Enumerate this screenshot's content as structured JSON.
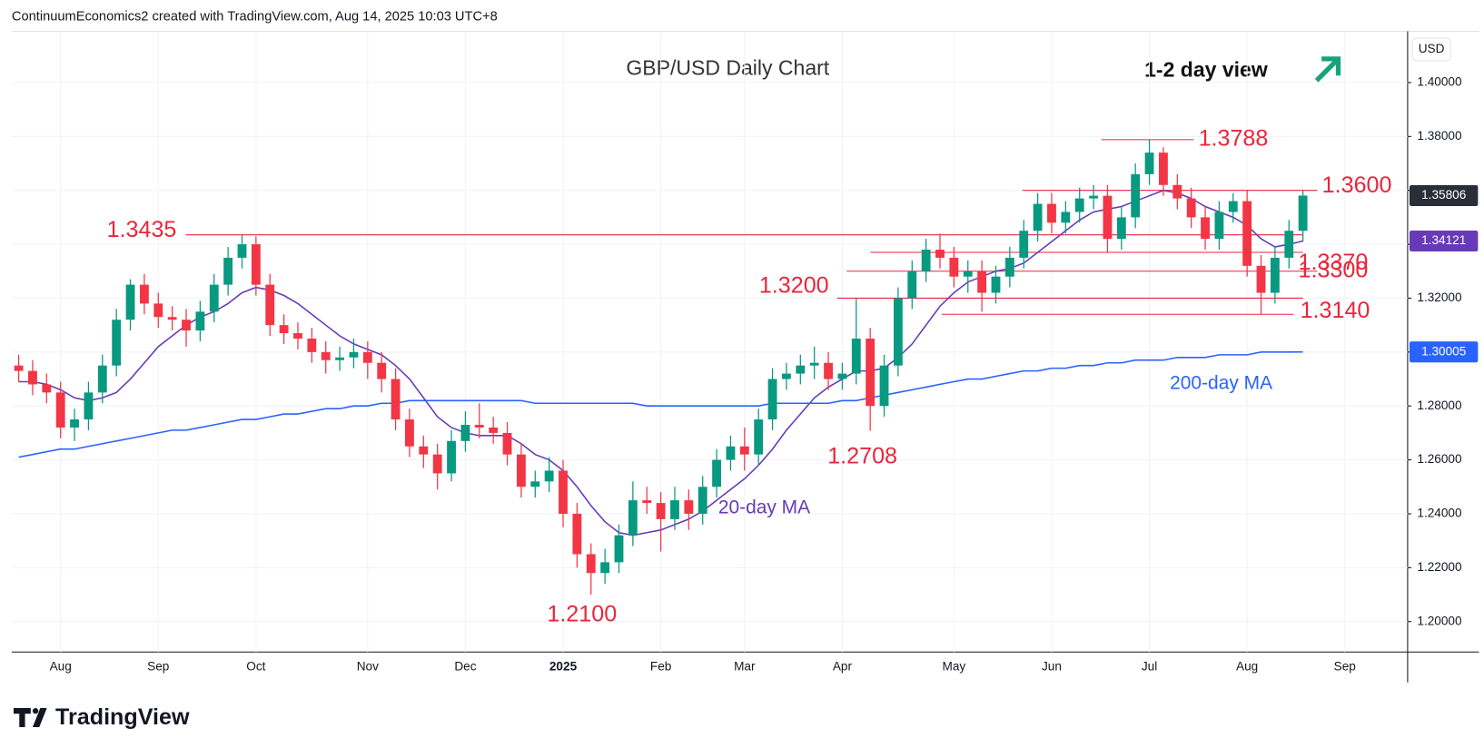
{
  "header": "ContinuumEconomics2 created with TradingView.com, Aug 14, 2025 10:03 UTC+8",
  "brand": "TradingView",
  "chart_data": {
    "type": "candlestick",
    "title": "GBP/USD Daily Chart",
    "subtitle": "1-2 day view",
    "currency": "USD",
    "up_color": "#089981",
    "down_color": "#f23645",
    "categories": [
      null,
      null,
      null,
      "Aug",
      null,
      null,
      null,
      null,
      null,
      null,
      "Sep",
      null,
      null,
      null,
      null,
      null,
      null,
      "Oct",
      null,
      null,
      null,
      null,
      null,
      null,
      null,
      "Nov",
      null,
      null,
      null,
      null,
      null,
      null,
      "Dec",
      null,
      null,
      null,
      null,
      null,
      null,
      "2025",
      null,
      null,
      null,
      null,
      null,
      null,
      "Feb",
      null,
      null,
      null,
      null,
      null,
      "Mar",
      null,
      null,
      null,
      null,
      null,
      null,
      "Apr",
      null,
      null,
      null,
      null,
      null,
      null,
      null,
      "May",
      null,
      null,
      null,
      null,
      null,
      null,
      "Jun",
      null,
      null,
      null,
      null,
      null,
      null,
      "Jul",
      null,
      null,
      null,
      null,
      null,
      null,
      "Aug",
      null,
      null,
      null,
      null,
      null,
      null,
      "Sep",
      null,
      null,
      null,
      null
    ],
    "open": [
      1.295,
      1.293,
      1.288,
      1.285,
      1.272,
      1.275,
      1.285,
      1.295,
      1.312,
      1.325,
      1.318,
      1.313,
      1.312,
      1.308,
      1.315,
      1.325,
      1.335,
      1.34,
      1.325,
      1.31,
      1.307,
      1.305,
      1.3,
      1.297,
      1.298,
      1.3,
      1.296,
      1.29,
      1.275,
      1.265,
      1.262,
      1.255,
      1.267,
      1.273,
      1.272,
      1.27,
      1.262,
      1.25,
      1.252,
      1.256,
      1.24,
      1.225,
      1.218,
      1.222,
      1.232,
      1.245,
      1.244,
      1.238,
      1.245,
      1.24,
      1.25,
      1.26,
      1.265,
      1.262,
      1.275,
      1.29,
      1.292,
      1.295,
      1.296,
      1.29,
      1.292,
      1.305,
      1.28,
      1.295,
      1.32,
      1.33,
      1.338,
      1.335,
      1.328,
      1.33,
      1.322,
      1.328,
      1.335,
      1.345,
      1.355,
      1.348,
      1.352,
      1.357,
      1.358,
      1.342,
      1.35,
      1.366,
      1.374,
      1.362,
      1.357,
      1.35,
      1.342,
      1.352,
      1.356,
      1.332,
      1.322,
      1.335,
      1.345,
      null,
      null,
      null,
      null,
      null,
      null,
      null
    ],
    "high": [
      1.299,
      1.297,
      1.292,
      1.289,
      1.279,
      1.289,
      1.299,
      1.316,
      1.327,
      1.329,
      1.322,
      1.317,
      1.316,
      1.319,
      1.329,
      1.339,
      1.3435,
      1.343,
      1.329,
      1.314,
      1.311,
      1.309,
      1.304,
      1.302,
      1.305,
      1.304,
      1.3,
      1.294,
      1.279,
      1.269,
      1.266,
      1.271,
      1.278,
      1.281,
      1.276,
      1.274,
      1.266,
      1.256,
      1.261,
      1.26,
      1.244,
      1.229,
      1.227,
      1.236,
      1.252,
      1.25,
      1.248,
      1.25,
      1.249,
      1.254,
      1.264,
      1.269,
      1.272,
      1.279,
      1.294,
      1.296,
      1.299,
      1.302,
      1.3,
      1.296,
      1.32,
      1.309,
      1.299,
      1.324,
      1.334,
      1.342,
      1.344,
      1.339,
      1.334,
      1.334,
      1.332,
      1.339,
      1.349,
      1.359,
      1.359,
      1.356,
      1.361,
      1.362,
      1.362,
      1.354,
      1.37,
      1.3788,
      1.376,
      1.366,
      1.361,
      1.354,
      1.356,
      1.359,
      1.36,
      1.336,
      1.339,
      1.349,
      1.36,
      null,
      null,
      null,
      null,
      null,
      null,
      null
    ],
    "low": [
      1.289,
      1.284,
      1.281,
      1.268,
      1.267,
      1.271,
      1.281,
      1.291,
      1.308,
      1.314,
      1.309,
      1.308,
      1.302,
      1.304,
      1.311,
      1.321,
      1.331,
      1.321,
      1.306,
      1.303,
      1.301,
      1.296,
      1.292,
      1.293,
      1.294,
      1.29,
      1.285,
      1.271,
      1.261,
      1.257,
      1.249,
      1.252,
      1.263,
      1.268,
      1.266,
      1.258,
      1.246,
      1.246,
      1.248,
      1.235,
      1.22,
      1.21,
      1.214,
      1.218,
      1.228,
      1.24,
      1.226,
      1.234,
      1.234,
      1.236,
      1.246,
      1.256,
      1.256,
      1.258,
      1.271,
      1.286,
      1.288,
      1.29,
      1.286,
      1.286,
      1.288,
      1.2708,
      1.276,
      1.291,
      1.316,
      1.326,
      1.331,
      1.324,
      1.322,
      1.315,
      1.318,
      1.324,
      1.331,
      1.341,
      1.344,
      1.344,
      1.348,
      1.353,
      1.337,
      1.338,
      1.346,
      1.362,
      1.358,
      1.353,
      1.346,
      1.338,
      1.338,
      1.348,
      1.328,
      1.314,
      1.318,
      1.331,
      1.341,
      null,
      null,
      null,
      null,
      null,
      null,
      null
    ],
    "close": [
      1.293,
      1.288,
      1.285,
      1.272,
      1.275,
      1.285,
      1.295,
      1.312,
      1.325,
      1.318,
      1.313,
      1.312,
      1.308,
      1.315,
      1.325,
      1.335,
      1.34,
      1.325,
      1.31,
      1.307,
      1.305,
      1.3,
      1.297,
      1.298,
      1.3,
      1.296,
      1.29,
      1.275,
      1.265,
      1.262,
      1.255,
      1.267,
      1.273,
      1.272,
      1.27,
      1.262,
      1.25,
      1.252,
      1.256,
      1.24,
      1.225,
      1.218,
      1.222,
      1.232,
      1.245,
      1.244,
      1.238,
      1.245,
      1.24,
      1.25,
      1.26,
      1.265,
      1.262,
      1.275,
      1.29,
      1.292,
      1.295,
      1.296,
      1.29,
      1.292,
      1.305,
      1.28,
      1.295,
      1.32,
      1.33,
      1.338,
      1.335,
      1.328,
      1.33,
      1.322,
      1.328,
      1.335,
      1.345,
      1.355,
      1.348,
      1.352,
      1.357,
      1.358,
      1.342,
      1.35,
      1.366,
      1.374,
      1.362,
      1.357,
      1.35,
      1.342,
      1.352,
      1.356,
      1.332,
      1.322,
      1.335,
      1.345,
      1.35806,
      null,
      null,
      null,
      null,
      null,
      null,
      null
    ],
    "series": [
      {
        "name": "20-day MA",
        "color": "#673ab7",
        "values": [
          1.289,
          1.289,
          1.288,
          1.286,
          1.283,
          1.282,
          1.283,
          1.285,
          1.29,
          1.296,
          1.302,
          1.306,
          1.31,
          1.313,
          1.315,
          1.318,
          1.322,
          1.324,
          1.323,
          1.321,
          1.318,
          1.314,
          1.31,
          1.306,
          1.303,
          1.301,
          1.299,
          1.295,
          1.29,
          1.283,
          1.276,
          1.272,
          1.27,
          1.269,
          1.269,
          1.269,
          1.266,
          1.262,
          1.26,
          1.256,
          1.25,
          1.243,
          1.237,
          1.233,
          1.232,
          1.233,
          1.234,
          1.236,
          1.238,
          1.241,
          1.245,
          1.249,
          1.253,
          1.258,
          1.264,
          1.271,
          1.277,
          1.283,
          1.287,
          1.29,
          1.293,
          1.293,
          1.294,
          1.298,
          1.303,
          1.31,
          1.317,
          1.322,
          1.326,
          1.328,
          1.33,
          1.331,
          1.333,
          1.337,
          1.341,
          1.345,
          1.349,
          1.352,
          1.353,
          1.354,
          1.356,
          1.358,
          1.36,
          1.359,
          1.357,
          1.354,
          1.352,
          1.35,
          1.347,
          1.342,
          1.339,
          1.34,
          1.34121,
          null,
          null,
          null,
          null,
          null,
          null,
          null
        ]
      },
      {
        "name": "200-day MA",
        "color": "#2962ff",
        "values": [
          1.261,
          1.262,
          1.263,
          1.264,
          1.264,
          1.265,
          1.266,
          1.267,
          1.268,
          1.269,
          1.27,
          1.271,
          1.271,
          1.272,
          1.273,
          1.274,
          1.275,
          1.275,
          1.276,
          1.277,
          1.277,
          1.278,
          1.279,
          1.279,
          1.28,
          1.28,
          1.281,
          1.281,
          1.282,
          1.282,
          1.282,
          1.282,
          1.282,
          1.282,
          1.282,
          1.282,
          1.282,
          1.281,
          1.281,
          1.281,
          1.281,
          1.281,
          1.281,
          1.281,
          1.281,
          1.28,
          1.28,
          1.28,
          1.28,
          1.28,
          1.28,
          1.28,
          1.28,
          1.28,
          1.281,
          1.281,
          1.281,
          1.281,
          1.281,
          1.282,
          1.282,
          1.283,
          1.284,
          1.285,
          1.286,
          1.287,
          1.288,
          1.289,
          1.29,
          1.29,
          1.291,
          1.292,
          1.293,
          1.293,
          1.294,
          1.294,
          1.295,
          1.295,
          1.296,
          1.296,
          1.297,
          1.297,
          1.297,
          1.298,
          1.298,
          1.298,
          1.299,
          1.299,
          1.299,
          1.3,
          1.3,
          1.3,
          1.30005,
          null,
          null,
          null,
          null,
          null,
          null,
          null
        ]
      }
    ],
    "ylim": [
      1.1887,
      1.419
    ],
    "yticks": [
      {
        "value": 1.2,
        "label": "1.20000"
      },
      {
        "value": 1.22,
        "label": "1.22000"
      },
      {
        "value": 1.24,
        "label": "1.24000"
      },
      {
        "value": 1.26,
        "label": "1.26000"
      },
      {
        "value": 1.28,
        "label": "1.28000"
      },
      {
        "value": 1.3,
        "label": "1.30000"
      },
      {
        "value": 1.32,
        "label": "1.32000"
      },
      {
        "value": 1.34,
        "label": "1.34000"
      },
      {
        "value": 1.36,
        "label": "1.36000"
      },
      {
        "value": 1.38,
        "label": "1.38000"
      },
      {
        "value": 1.4,
        "label": "1.40000"
      }
    ],
    "grid": true,
    "annotations": [
      {
        "value": 1.3788,
        "label": "1.3788"
      },
      {
        "value": 1.36,
        "label": "1.3600"
      },
      {
        "value": 1.3435,
        "label": "1.3435"
      },
      {
        "value": 1.337,
        "label": "1.3370"
      },
      {
        "value": 1.33,
        "label": "1.3300"
      },
      {
        "value": 1.32,
        "label": "1.3200"
      },
      {
        "value": 1.314,
        "label": "1.3140"
      },
      {
        "value": 1.2708,
        "label": "1.2708"
      },
      {
        "value": 1.21,
        "label": "1.2100"
      }
    ]
  }
}
